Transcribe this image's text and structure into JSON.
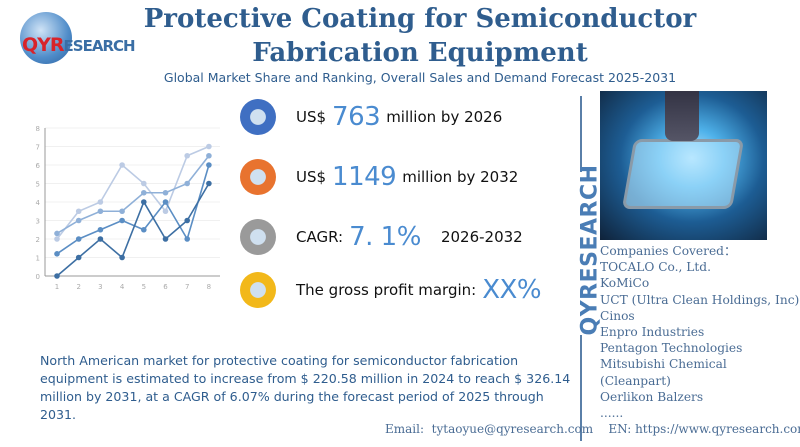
{
  "brand": {
    "logo_text_a": "QYR",
    "logo_text_b": "ESEARCH",
    "vertical_text": "QYRESEARCH"
  },
  "header": {
    "title": "Protective Coating for Semiconductor Fabrication Equipment",
    "subtitle": "Global Market Share and Ranking, Overall Sales and Demand Forecast 2025-2031"
  },
  "stats": [
    {
      "prefix": "US$",
      "value": "763",
      "suffix": "million by 2026",
      "icon": "qyr-globe-icon",
      "color": "#3f6fc2"
    },
    {
      "prefix": "US$",
      "value": "1149",
      "suffix": "million by 2032",
      "icon": "qyr-globe-icon",
      "color": "#e8732f"
    },
    {
      "prefix": "CAGR:",
      "value": "7. 1%",
      "suffix": "2026-2032",
      "icon": "qyr-globe-icon",
      "color": "#9a9a9a"
    },
    {
      "prefix": "The gross profit margin:",
      "value": "XX%",
      "suffix": "",
      "icon": "qyr-globe-icon",
      "color": "#f2b81a"
    }
  ],
  "description": "North American market for protective coating for semiconductor fabrication equipment is estimated to increase from $ 220.58 million in 2024 to reach $ 326.14 million by 2031, at a CAGR of 6.07% during the forecast period of 2025 through 2031.",
  "companies": {
    "heading": "Companies Covered：",
    "items": [
      "TOCALO Co., Ltd.",
      "KoMiCo",
      "UCT (Ultra Clean Holdings, Inc)",
      "Cinos",
      "Enpro Industries",
      "Pentagon Technologies",
      "Mitsubishi Chemical (Cleanpart)",
      "Oerlikon Balzers",
      "......"
    ]
  },
  "footer": {
    "email_label": "Email:",
    "email": "tytaoyue@qyresearch.com",
    "web_label": "EN:",
    "web": "https://www.qyresearch.com"
  },
  "chart_data": {
    "type": "line",
    "x": [
      1,
      2,
      3,
      4,
      5,
      6,
      7,
      8
    ],
    "ylim": [
      0,
      8
    ],
    "yticks": [
      0,
      1,
      2,
      3,
      4,
      5,
      6,
      7,
      8
    ],
    "grid": true,
    "series": [
      {
        "values": [
          2,
          3.5,
          4,
          6,
          5,
          3.5,
          6.5,
          7
        ],
        "color": "#bccbe4"
      },
      {
        "values": [
          2.3,
          3,
          3.5,
          3.5,
          4.5,
          4.5,
          5,
          6.5
        ],
        "color": "#8fb0d8"
      },
      {
        "values": [
          1.2,
          2,
          2.5,
          3,
          2.5,
          4,
          2,
          6
        ],
        "color": "#5b8ec4"
      },
      {
        "values": [
          0,
          1,
          2,
          1,
          4,
          2,
          3,
          5
        ],
        "color": "#3d6fa3"
      }
    ]
  }
}
